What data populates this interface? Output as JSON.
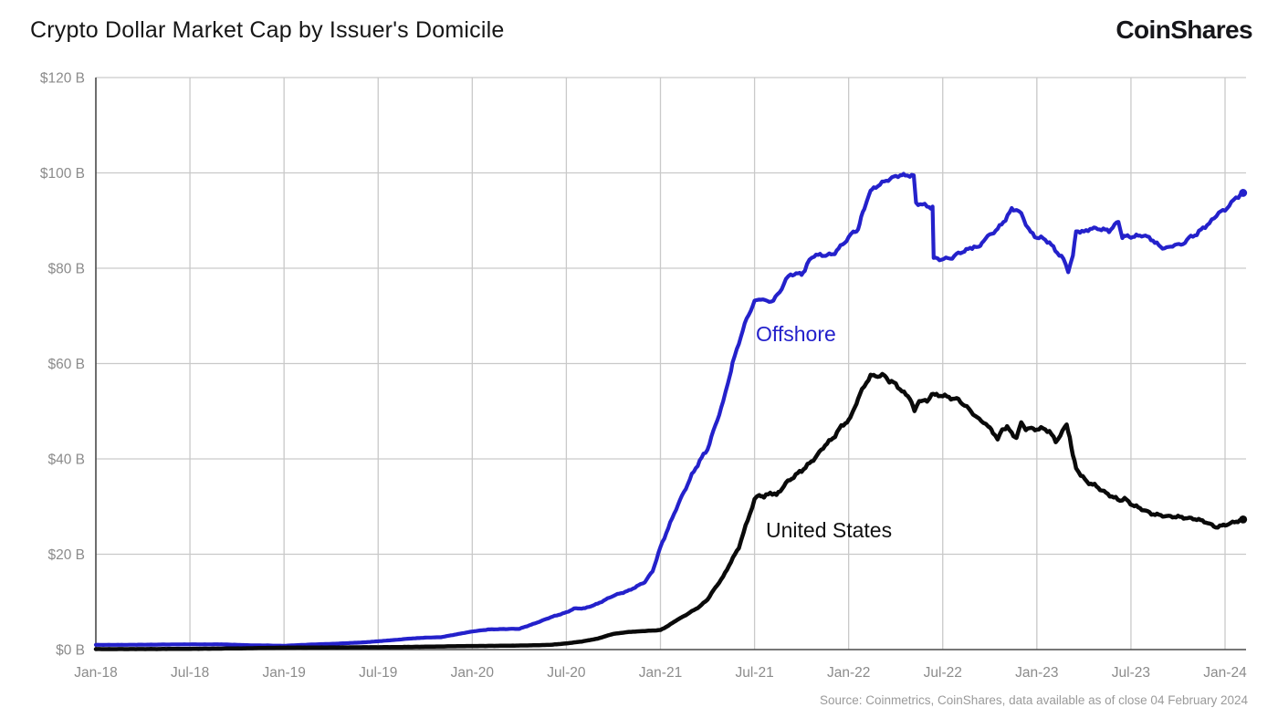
{
  "header": {
    "title": "Crypto Dollar Market Cap by Issuer's Domicile",
    "logo_text": "CoinShares"
  },
  "footer": {
    "source": "Source: Coinmetrics, CoinShares, data available as of close 04 February 2024"
  },
  "colors": {
    "offshore_line": "#2421CB",
    "united_states_line": "#0a0a0a",
    "grid": "#c9c9c9",
    "axis": "#4a4a4a",
    "tick_label": "#8b8b8b",
    "title_text": "#161616",
    "source_text": "#9a9a9a"
  },
  "chart_data": {
    "type": "line",
    "title": "Crypto Dollar Market Cap by Issuer's Domicile",
    "xlabel": "",
    "ylabel": "",
    "x_unit": "months since Jan-2018, ticks every 6 months",
    "x_tick_labels": [
      "Jan-18",
      "Jul-18",
      "Jan-19",
      "Jul-19",
      "Jan-20",
      "Jul-20",
      "Jan-21",
      "Jul-21",
      "Jan-22",
      "Jul-22",
      "Jan-23",
      "Jul-23",
      "Jan-24"
    ],
    "x_tick_months": [
      0,
      6,
      12,
      18,
      24,
      30,
      36,
      42,
      48,
      54,
      60,
      66,
      72
    ],
    "y_tick_labels": [
      "$0 B",
      "$20 B",
      "$40 B",
      "$60 B",
      "$80 B",
      "$100 B",
      "$120 B"
    ],
    "y_tick_values": [
      0,
      20,
      40,
      60,
      80,
      100,
      120
    ],
    "ylim": [
      0,
      120
    ],
    "xlim_months": [
      0,
      73.3
    ],
    "grid": true,
    "legend_position": "inline-labels",
    "series": [
      {
        "name": "Offshore",
        "color": "#2421CB",
        "points": [
          [
            0,
            1.0
          ],
          [
            2,
            1.0
          ],
          [
            4,
            1.05
          ],
          [
            6,
            1.1
          ],
          [
            8,
            1.1
          ],
          [
            10,
            0.9
          ],
          [
            12,
            0.8
          ],
          [
            13,
            0.95
          ],
          [
            14,
            1.1
          ],
          [
            15,
            1.2
          ],
          [
            16,
            1.35
          ],
          [
            17,
            1.5
          ],
          [
            18,
            1.75
          ],
          [
            19,
            2.0
          ],
          [
            20,
            2.3
          ],
          [
            21,
            2.5
          ],
          [
            22,
            2.6
          ],
          [
            23,
            3.2
          ],
          [
            24,
            3.8
          ],
          [
            25,
            4.2
          ],
          [
            26,
            4.3
          ],
          [
            27,
            4.35
          ],
          [
            28,
            5.5
          ],
          [
            29,
            6.8
          ],
          [
            30,
            7.8
          ],
          [
            30.5,
            8.6
          ],
          [
            31.2,
            8.7
          ],
          [
            32,
            9.6
          ],
          [
            33,
            11.3
          ],
          [
            34,
            12.4
          ],
          [
            35,
            14.2
          ],
          [
            35.5,
            16.5
          ],
          [
            36,
            21.5
          ],
          [
            36.5,
            25.5
          ],
          [
            37,
            29.5
          ],
          [
            37.5,
            33.0
          ],
          [
            38,
            36.5
          ],
          [
            38.5,
            39.5
          ],
          [
            39,
            42.0
          ],
          [
            39.5,
            47.0
          ],
          [
            40,
            52.0
          ],
          [
            40.3,
            56.0
          ],
          [
            40.6,
            60.0
          ],
          [
            41,
            64.5
          ],
          [
            41.5,
            69.5
          ],
          [
            42,
            73.0
          ],
          [
            42.4,
            73.6
          ],
          [
            42.8,
            72.9
          ],
          [
            43.2,
            73.4
          ],
          [
            43.6,
            75.0
          ],
          [
            44,
            77.5
          ],
          [
            44.3,
            78.8
          ],
          [
            45,
            78.8
          ],
          [
            45.2,
            79.5
          ],
          [
            45.5,
            81.7
          ],
          [
            45.8,
            82.8
          ],
          [
            46.3,
            82.7
          ],
          [
            47,
            83.0
          ],
          [
            47.6,
            85.0
          ],
          [
            48,
            86.5
          ],
          [
            48.3,
            87.5
          ],
          [
            48.6,
            88.2
          ],
          [
            48.8,
            90.5
          ],
          [
            49,
            92.5
          ],
          [
            49.3,
            95.5
          ],
          [
            49.6,
            96.8
          ],
          [
            50,
            97.5
          ],
          [
            50.4,
            98.4
          ],
          [
            51,
            99.2
          ],
          [
            51.3,
            99.7
          ],
          [
            51.6,
            99.3
          ],
          [
            51.9,
            99.6
          ],
          [
            52.15,
            99.5
          ],
          [
            52.3,
            93.5
          ],
          [
            52.7,
            93.4
          ],
          [
            53.0,
            93.0
          ],
          [
            53.35,
            92.9
          ],
          [
            53.42,
            82.0
          ],
          [
            53.8,
            81.8
          ],
          [
            54.2,
            82.0
          ],
          [
            54.6,
            82.3
          ],
          [
            55,
            83.1
          ],
          [
            55.5,
            83.7
          ],
          [
            56,
            84.5
          ],
          [
            56.3,
            84.3
          ],
          [
            56.6,
            85.8
          ],
          [
            57,
            86.9
          ],
          [
            57.5,
            88.2
          ],
          [
            58,
            90.3
          ],
          [
            58.4,
            92.5
          ],
          [
            58.7,
            92.2
          ],
          [
            59,
            91.5
          ],
          [
            59.3,
            89.3
          ],
          [
            59.6,
            87.6
          ],
          [
            60,
            86.5
          ],
          [
            60.4,
            86.2
          ],
          [
            60.8,
            85.3
          ],
          [
            61.3,
            83.3
          ],
          [
            61.7,
            82.0
          ],
          [
            62.0,
            79.4
          ],
          [
            62.3,
            82.5
          ],
          [
            62.5,
            87.8
          ],
          [
            63,
            87.5
          ],
          [
            63.4,
            88.4
          ],
          [
            64,
            88.3
          ],
          [
            64.6,
            87.8
          ],
          [
            65.2,
            89.7
          ],
          [
            65.45,
            86.5
          ],
          [
            66,
            86.7
          ],
          [
            66.8,
            86.9
          ],
          [
            67.4,
            85.8
          ],
          [
            67.9,
            84.3
          ],
          [
            68.5,
            84.2
          ],
          [
            68.8,
            85.2
          ],
          [
            69.2,
            84.8
          ],
          [
            69.7,
            86.3
          ],
          [
            70.2,
            87.1
          ],
          [
            70.6,
            88.4
          ],
          [
            71,
            89.5
          ],
          [
            71.3,
            90.5
          ],
          [
            71.6,
            91.7
          ],
          [
            72,
            92.3
          ],
          [
            72.4,
            93.6
          ],
          [
            72.7,
            94.9
          ],
          [
            73,
            95.4
          ],
          [
            73.15,
            95.8
          ]
        ]
      },
      {
        "name": "United States",
        "color": "#0a0a0a",
        "points": [
          [
            0,
            0.1
          ],
          [
            4,
            0.12
          ],
          [
            8,
            0.2
          ],
          [
            10,
            0.3
          ],
          [
            12,
            0.4
          ],
          [
            15,
            0.45
          ],
          [
            18,
            0.5
          ],
          [
            21,
            0.6
          ],
          [
            24,
            0.75
          ],
          [
            26,
            0.8
          ],
          [
            28,
            0.9
          ],
          [
            29,
            1.0
          ],
          [
            30,
            1.3
          ],
          [
            31,
            1.7
          ],
          [
            32,
            2.3
          ],
          [
            33,
            3.3
          ],
          [
            34,
            3.7
          ],
          [
            35,
            3.9
          ],
          [
            36,
            4.1
          ],
          [
            36.5,
            5.0
          ],
          [
            37,
            6.1
          ],
          [
            37.5,
            7.0
          ],
          [
            38,
            8.0
          ],
          [
            38.5,
            9.0
          ],
          [
            39,
            10.5
          ],
          [
            39.5,
            13.0
          ],
          [
            40,
            15.3
          ],
          [
            40.5,
            18.5
          ],
          [
            41,
            21.5
          ],
          [
            41.3,
            24.5
          ],
          [
            41.7,
            28.5
          ],
          [
            42,
            31.4
          ],
          [
            42.3,
            32.5
          ],
          [
            42.6,
            32.0
          ],
          [
            43,
            32.9
          ],
          [
            43.4,
            32.3
          ],
          [
            44,
            34.8
          ],
          [
            44.5,
            36.2
          ],
          [
            45,
            37.5
          ],
          [
            45.5,
            39.0
          ],
          [
            46,
            40.8
          ],
          [
            46.5,
            43.0
          ],
          [
            47,
            44.4
          ],
          [
            47.4,
            46.3
          ],
          [
            47.8,
            47.5
          ],
          [
            48.1,
            48.5
          ],
          [
            48.4,
            51.0
          ],
          [
            48.7,
            53.5
          ],
          [
            49,
            55.3
          ],
          [
            49.4,
            57.3
          ],
          [
            49.7,
            57.5
          ],
          [
            50,
            57.3
          ],
          [
            50.3,
            57.6
          ],
          [
            50.6,
            56.2
          ],
          [
            51,
            55.7
          ],
          [
            51.4,
            54.2
          ],
          [
            51.9,
            53.0
          ],
          [
            52.2,
            49.8
          ],
          [
            52.5,
            52.4
          ],
          [
            53,
            52.1
          ],
          [
            53.3,
            53.6
          ],
          [
            53.6,
            53.4
          ],
          [
            54,
            53.4
          ],
          [
            54.4,
            52.8
          ],
          [
            55,
            52.4
          ],
          [
            55.4,
            51.1
          ],
          [
            55.8,
            50.1
          ],
          [
            56.2,
            48.6
          ],
          [
            56.6,
            47.7
          ],
          [
            56.9,
            46.7
          ],
          [
            57.2,
            45.7
          ],
          [
            57.5,
            44.0
          ],
          [
            57.8,
            46.3
          ],
          [
            58.1,
            46.7
          ],
          [
            58.4,
            45.4
          ],
          [
            58.7,
            44.4
          ],
          [
            59.0,
            47.6
          ],
          [
            59.3,
            46.3
          ],
          [
            60,
            46.3
          ],
          [
            60.4,
            46.3
          ],
          [
            60.8,
            45.7
          ],
          [
            61.2,
            43.8
          ],
          [
            61.5,
            44.8
          ],
          [
            61.9,
            47.3
          ],
          [
            62.1,
            44.5
          ],
          [
            62.3,
            40.6
          ],
          [
            62.5,
            38.1
          ],
          [
            62.8,
            36.7
          ],
          [
            63.2,
            35.2
          ],
          [
            63.8,
            34.3
          ],
          [
            64.4,
            32.9
          ],
          [
            64.9,
            32.0
          ],
          [
            65.3,
            31.2
          ],
          [
            65.6,
            31.7
          ],
          [
            66.1,
            30.4
          ],
          [
            66.7,
            29.5
          ],
          [
            67.3,
            28.5
          ],
          [
            67.9,
            28.1
          ],
          [
            68.4,
            27.9
          ],
          [
            69,
            27.8
          ],
          [
            69.6,
            27.5
          ],
          [
            70.2,
            27.3
          ],
          [
            70.8,
            26.7
          ],
          [
            71.4,
            25.7
          ],
          [
            71.8,
            25.9
          ],
          [
            72,
            26.2
          ],
          [
            72.6,
            26.8
          ],
          [
            73.15,
            27.3
          ]
        ]
      }
    ],
    "series_labels": [
      {
        "text": "Offshore",
        "series": "Offshore"
      },
      {
        "text": "United States",
        "series": "United States"
      }
    ]
  }
}
